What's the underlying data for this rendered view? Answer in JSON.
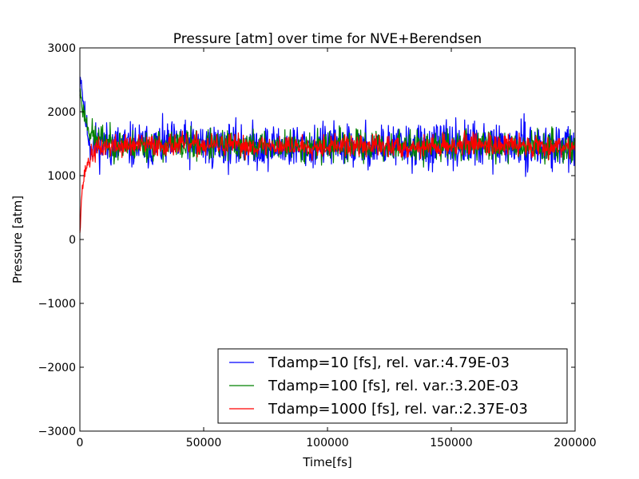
{
  "chart_data": {
    "type": "line",
    "title": "Pressure [atm] over time for NVE+Berendsen",
    "xlabel": "Time[fs]",
    "ylabel": "Pressure [atm]",
    "xlim": [
      0,
      200000
    ],
    "ylim": [
      -3000,
      3000
    ],
    "xticks": [
      0,
      50000,
      100000,
      150000,
      200000
    ],
    "xtick_labels": [
      "0",
      "50000",
      "100000",
      "150000",
      "200000"
    ],
    "yticks": [
      -3000,
      -2000,
      -1000,
      0,
      1000,
      2000,
      3000
    ],
    "ytick_labels": [
      "−3000",
      "−2000",
      "−1000",
      "0",
      "1000",
      "2000",
      "3000"
    ],
    "grid": false,
    "legend_position": "lower-right",
    "series": [
      {
        "name": "Tdamp=10 [fs], rel. var.:4.79E-03",
        "color": "#0000ff",
        "x": [
          0,
          500,
          1000,
          2000,
          3000,
          4000,
          6000,
          8000,
          12000,
          20000,
          40000,
          60000,
          80000,
          100000,
          120000,
          140000,
          160000,
          180000,
          200000
        ],
        "values": [
          2450,
          2600,
          2300,
          1950,
          1700,
          1520,
          1480,
          1500,
          1470,
          1460,
          1480,
          1470,
          1450,
          1470,
          1460,
          1450,
          1480,
          1460,
          1450
        ],
        "noise": 175,
        "seed": 11
      },
      {
        "name": "Tdamp=100 [fs], rel. var.:3.20E-03",
        "color": "#008000",
        "x": [
          0,
          500,
          1000,
          2000,
          3000,
          4000,
          6000,
          8000,
          10000,
          12000,
          20000,
          40000,
          60000,
          80000,
          100000,
          120000,
          140000,
          160000,
          180000,
          200000
        ],
        "values": [
          2300,
          2250,
          2050,
          1950,
          1800,
          1700,
          1580,
          1560,
          1580,
          1500,
          1470,
          1480,
          1470,
          1460,
          1470,
          1460,
          1450,
          1480,
          1460,
          1450
        ],
        "noise": 120,
        "seed": 23
      },
      {
        "name": "Tdamp=1000 [fs], rel. var.:2.37E-03",
        "color": "#ff0000",
        "x": [
          0,
          300,
          600,
          1000,
          1500,
          2000,
          2500,
          3000,
          4000,
          5000,
          6000,
          8000,
          10000,
          14000,
          20000,
          40000,
          60000,
          80000,
          100000,
          120000,
          140000,
          160000,
          180000,
          200000
        ],
        "values": [
          150,
          380,
          620,
          800,
          920,
          1050,
          1120,
          1180,
          1260,
          1330,
          1380,
          1430,
          1450,
          1460,
          1470,
          1480,
          1470,
          1460,
          1470,
          1460,
          1450,
          1500,
          1470,
          1460
        ],
        "noise": 85,
        "seed": 37
      }
    ]
  }
}
